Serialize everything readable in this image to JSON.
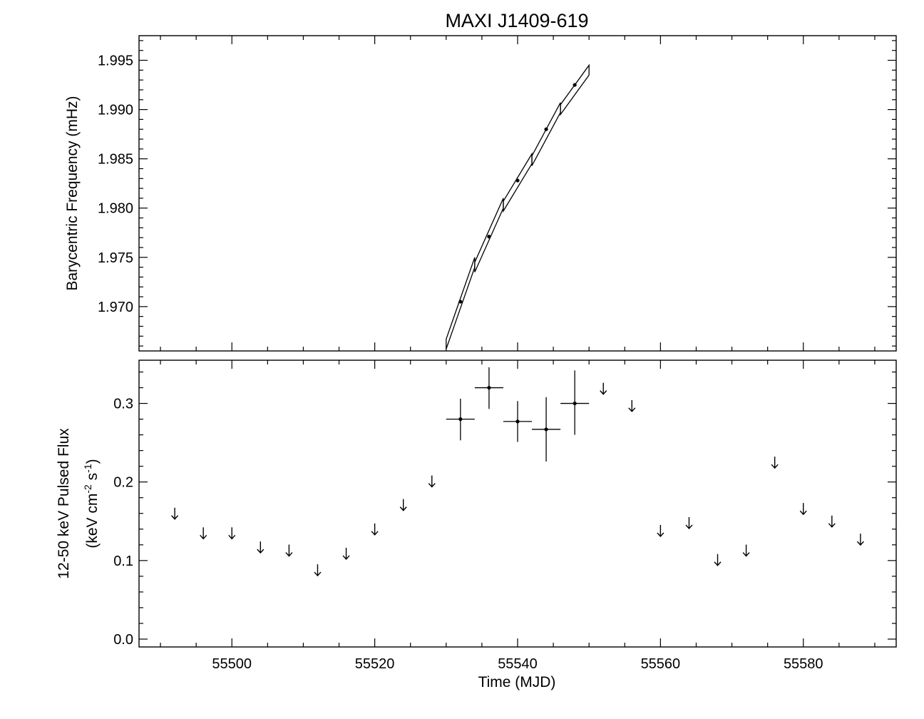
{
  "chart_data": [
    {
      "type": "line",
      "title": "MAXI J1409-619",
      "ylabel": "Barycentric Frequency (mHz)",
      "xlim": [
        55487,
        55593
      ],
      "ylim": [
        1.9655,
        1.9975
      ],
      "y_ticks": [
        "1.970",
        "1.975",
        "1.980",
        "1.985",
        "1.990",
        "1.995"
      ],
      "y_tick_values": [
        1.97,
        1.975,
        1.98,
        1.985,
        1.99,
        1.995
      ],
      "points": {
        "x": [
          55532,
          55536,
          55540,
          55544,
          55548
        ],
        "y": [
          1.9705,
          1.9771,
          1.9828,
          1.988,
          1.9925
        ]
      },
      "band": {
        "segments": [
          {
            "x": [
              55530,
              55534
            ],
            "center": [
              1.9662,
              1.9745
            ],
            "width": 0.001
          },
          {
            "x": [
              55534,
              55538
            ],
            "center": [
              1.974,
              1.9805
            ],
            "width": 0.001
          },
          {
            "x": [
              55538,
              55542
            ],
            "center": [
              1.9802,
              1.985
            ],
            "width": 0.001
          },
          {
            "x": [
              55542,
              55546
            ],
            "center": [
              1.9848,
              1.9902
            ],
            "width": 0.001
          },
          {
            "x": [
              55546,
              55550
            ],
            "center": [
              1.99,
              1.994
            ],
            "width": 0.001
          }
        ]
      },
      "grid": false
    },
    {
      "type": "scatter",
      "xlabel": "Time (MJD)",
      "ylabel_line1": "12-50 keV Pulsed Flux",
      "ylabel_line2_parts": {
        "pre": "(keV cm",
        "sup1": "-2",
        "mid": " s",
        "sup2": "-1",
        "post": ")"
      },
      "xlim": [
        55487,
        55593
      ],
      "ylim": [
        -0.01,
        0.355
      ],
      "x_ticks": [
        "55500",
        "55520",
        "55540",
        "55560",
        "55580"
      ],
      "x_tick_values": [
        55500,
        55520,
        55540,
        55560,
        55580
      ],
      "y_ticks": [
        "0.0",
        "0.1",
        "0.2",
        "0.3"
      ],
      "y_tick_values": [
        0.0,
        0.1,
        0.2,
        0.3
      ],
      "detections": [
        {
          "x": 55532,
          "y": 0.28,
          "xerr": 2,
          "ylo": 0.253,
          "yhi": 0.306
        },
        {
          "x": 55536,
          "y": 0.32,
          "xerr": 2,
          "ylo": 0.293,
          "yhi": 0.346
        },
        {
          "x": 55540,
          "y": 0.277,
          "xerr": 2,
          "ylo": 0.251,
          "yhi": 0.303
        },
        {
          "x": 55544,
          "y": 0.267,
          "xerr": 2,
          "ylo": 0.226,
          "yhi": 0.308
        },
        {
          "x": 55548,
          "y": 0.3,
          "xerr": 2,
          "ylo": 0.26,
          "yhi": 0.342
        }
      ],
      "upper_limits": {
        "x": [
          55492,
          55496,
          55500,
          55504,
          55508,
          55512,
          55516,
          55520,
          55524,
          55528,
          55552,
          55556,
          55560,
          55564,
          55568,
          55572,
          55576,
          55580,
          55584,
          55588
        ],
        "y": [
          0.16,
          0.135,
          0.135,
          0.117,
          0.113,
          0.088,
          0.109,
          0.14,
          0.171,
          0.201,
          0.319,
          0.297,
          0.138,
          0.148,
          0.101,
          0.113,
          0.225,
          0.166,
          0.15,
          0.127
        ]
      },
      "grid": false
    }
  ]
}
